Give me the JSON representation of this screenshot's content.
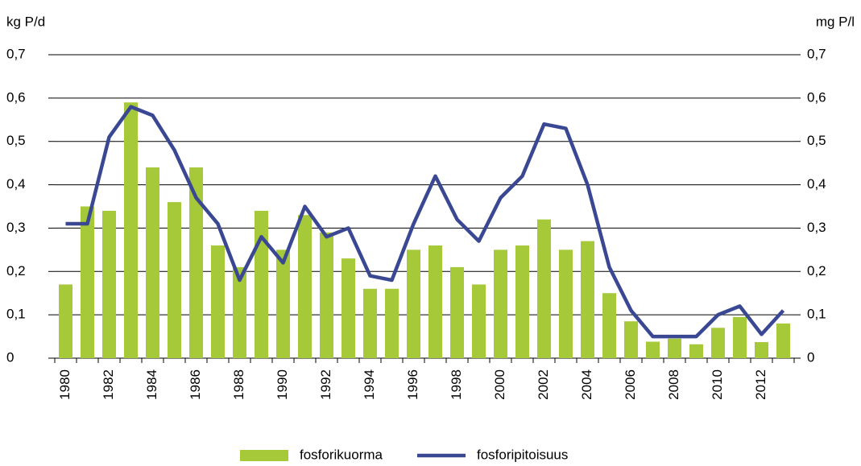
{
  "chart_data": {
    "type": "bar-line",
    "y_label": "kg P/d",
    "y2_label": "mg P/l",
    "categories": [
      "1980",
      null,
      "1982",
      null,
      "1984",
      null,
      "1986",
      null,
      "1988",
      null,
      "1990",
      null,
      "1992",
      null,
      "1994",
      null,
      "1996",
      null,
      "1998",
      null,
      "2000",
      null,
      "2002",
      null,
      "2004",
      null,
      "2006",
      null,
      "2008",
      null,
      "2010",
      null,
      "2012",
      null
    ],
    "series": [
      {
        "name": "fosforikuorma",
        "type": "bar",
        "color": "#a6c939",
        "axis": "y",
        "values": [
          0.17,
          0.35,
          0.34,
          0.59,
          0.44,
          0.36,
          0.44,
          0.26,
          0.21,
          0.34,
          0.25,
          0.33,
          0.29,
          0.23,
          0.16,
          0.16,
          0.25,
          0.26,
          0.21,
          0.17,
          0.25,
          0.26,
          0.32,
          0.25,
          0.27,
          0.15,
          0.085,
          0.038,
          0.045,
          0.032,
          0.07,
          0.095,
          0.037,
          0.08
        ]
      },
      {
        "name": "fosforipitoisuus",
        "type": "line",
        "color": "#3a4893",
        "axis": "y2",
        "values": [
          0.31,
          0.31,
          0.51,
          0.58,
          0.56,
          0.48,
          0.37,
          0.31,
          0.18,
          0.28,
          0.22,
          0.35,
          0.28,
          0.3,
          0.19,
          0.18,
          0.31,
          0.42,
          0.32,
          0.27,
          0.37,
          0.42,
          0.54,
          0.53,
          0.4,
          0.21,
          0.11,
          0.05,
          0.05,
          0.05,
          0.1,
          0.12,
          0.055,
          0.11
        ]
      }
    ],
    "ylim": [
      0,
      0.7
    ],
    "yticks": [
      0,
      {
        "value": 0.1,
        "label": "0,1"
      },
      {
        "value": 0.2,
        "label": "0,2"
      },
      {
        "value": 0.3,
        "label": "0,3"
      },
      {
        "value": 0.4,
        "label": "0,4"
      },
      {
        "value": 0.5,
        "label": "0,5"
      },
      {
        "value": 0.6,
        "label": "0,6"
      },
      {
        "value": 0.7,
        "label": "0,7"
      }
    ],
    "y2lim": [
      0,
      0.7
    ],
    "y2ticks": [
      0,
      {
        "value": 0.1,
        "label": "0,1"
      },
      {
        "value": 0.2,
        "label": "0,2"
      },
      {
        "value": 0.3,
        "label": "0,3"
      },
      {
        "value": 0.4,
        "label": "0,4"
      },
      {
        "value": 0.5,
        "label": "0,5"
      },
      {
        "value": 0.6,
        "label": "0,6"
      },
      {
        "value": 0.7,
        "label": "0,7"
      }
    ],
    "grid": true
  }
}
